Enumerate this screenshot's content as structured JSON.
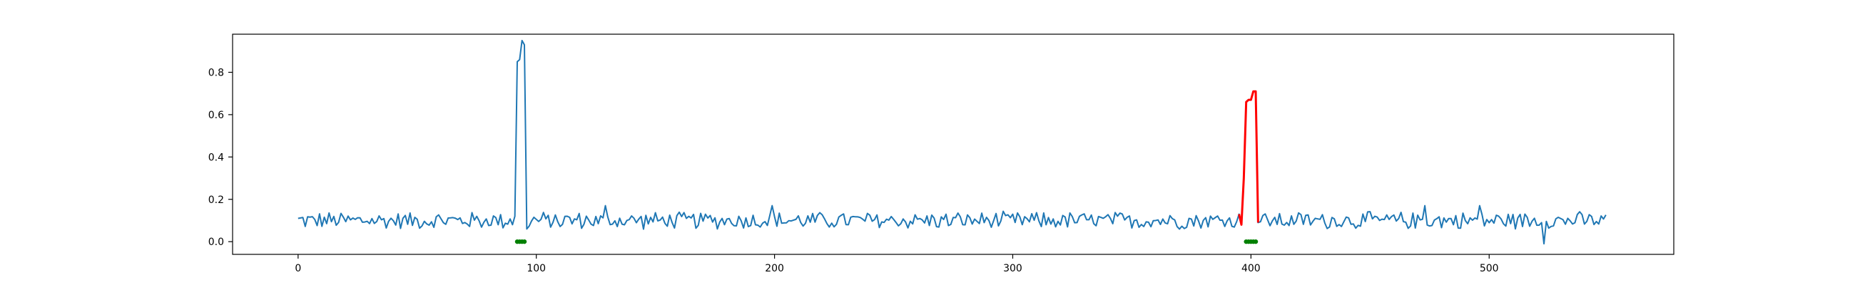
{
  "chart_data": {
    "type": "line",
    "title": "",
    "xlabel": "",
    "ylabel": "",
    "xlim": [
      -27.5,
      577.5
    ],
    "ylim": [
      -0.06,
      0.98
    ],
    "grid": false,
    "legend": "none",
    "x_ticks": [
      0,
      100,
      200,
      300,
      400,
      500
    ],
    "x_tick_labels": [
      "0",
      "100",
      "200",
      "300",
      "400",
      "500"
    ],
    "y_ticks": [
      0.0,
      0.2,
      0.4,
      0.6,
      0.8
    ],
    "y_tick_labels": [
      "0.0",
      "0.2",
      "0.4",
      "0.6",
      "0.8"
    ],
    "x_start": 0,
    "n_points": 550,
    "baseline_mean": 0.1,
    "baseline_amplitude": 0.045,
    "baseline_min": 0.0,
    "series": [
      {
        "color": "#1f77b4",
        "values_overrides": [
          {
            "x": 91,
            "y": 0.12
          },
          {
            "x": 92,
            "y": 0.85
          },
          {
            "x": 93,
            "y": 0.86
          },
          {
            "x": 94,
            "y": 0.95
          },
          {
            "x": 95,
            "y": 0.93
          },
          {
            "x": 96,
            "y": 0.06
          },
          {
            "x": 129,
            "y": 0.17
          },
          {
            "x": 199,
            "y": 0.17
          },
          {
            "x": 473,
            "y": 0.17
          },
          {
            "x": 496,
            "y": 0.17
          },
          {
            "x": 523,
            "y": -0.01
          }
        ]
      },
      {
        "color": "#ff0000",
        "points": [
          [
            395,
            0.13
          ],
          [
            396,
            0.08
          ],
          [
            397,
            0.3
          ],
          [
            398,
            0.66
          ],
          [
            399,
            0.67
          ],
          [
            400,
            0.67
          ],
          [
            401,
            0.71
          ],
          [
            402,
            0.71
          ],
          [
            403,
            0.09
          ]
        ]
      }
    ],
    "markers": {
      "color": "#008000",
      "y": 0.0,
      "segments": [
        [
          92,
          95
        ],
        [
          398,
          402
        ]
      ]
    }
  }
}
